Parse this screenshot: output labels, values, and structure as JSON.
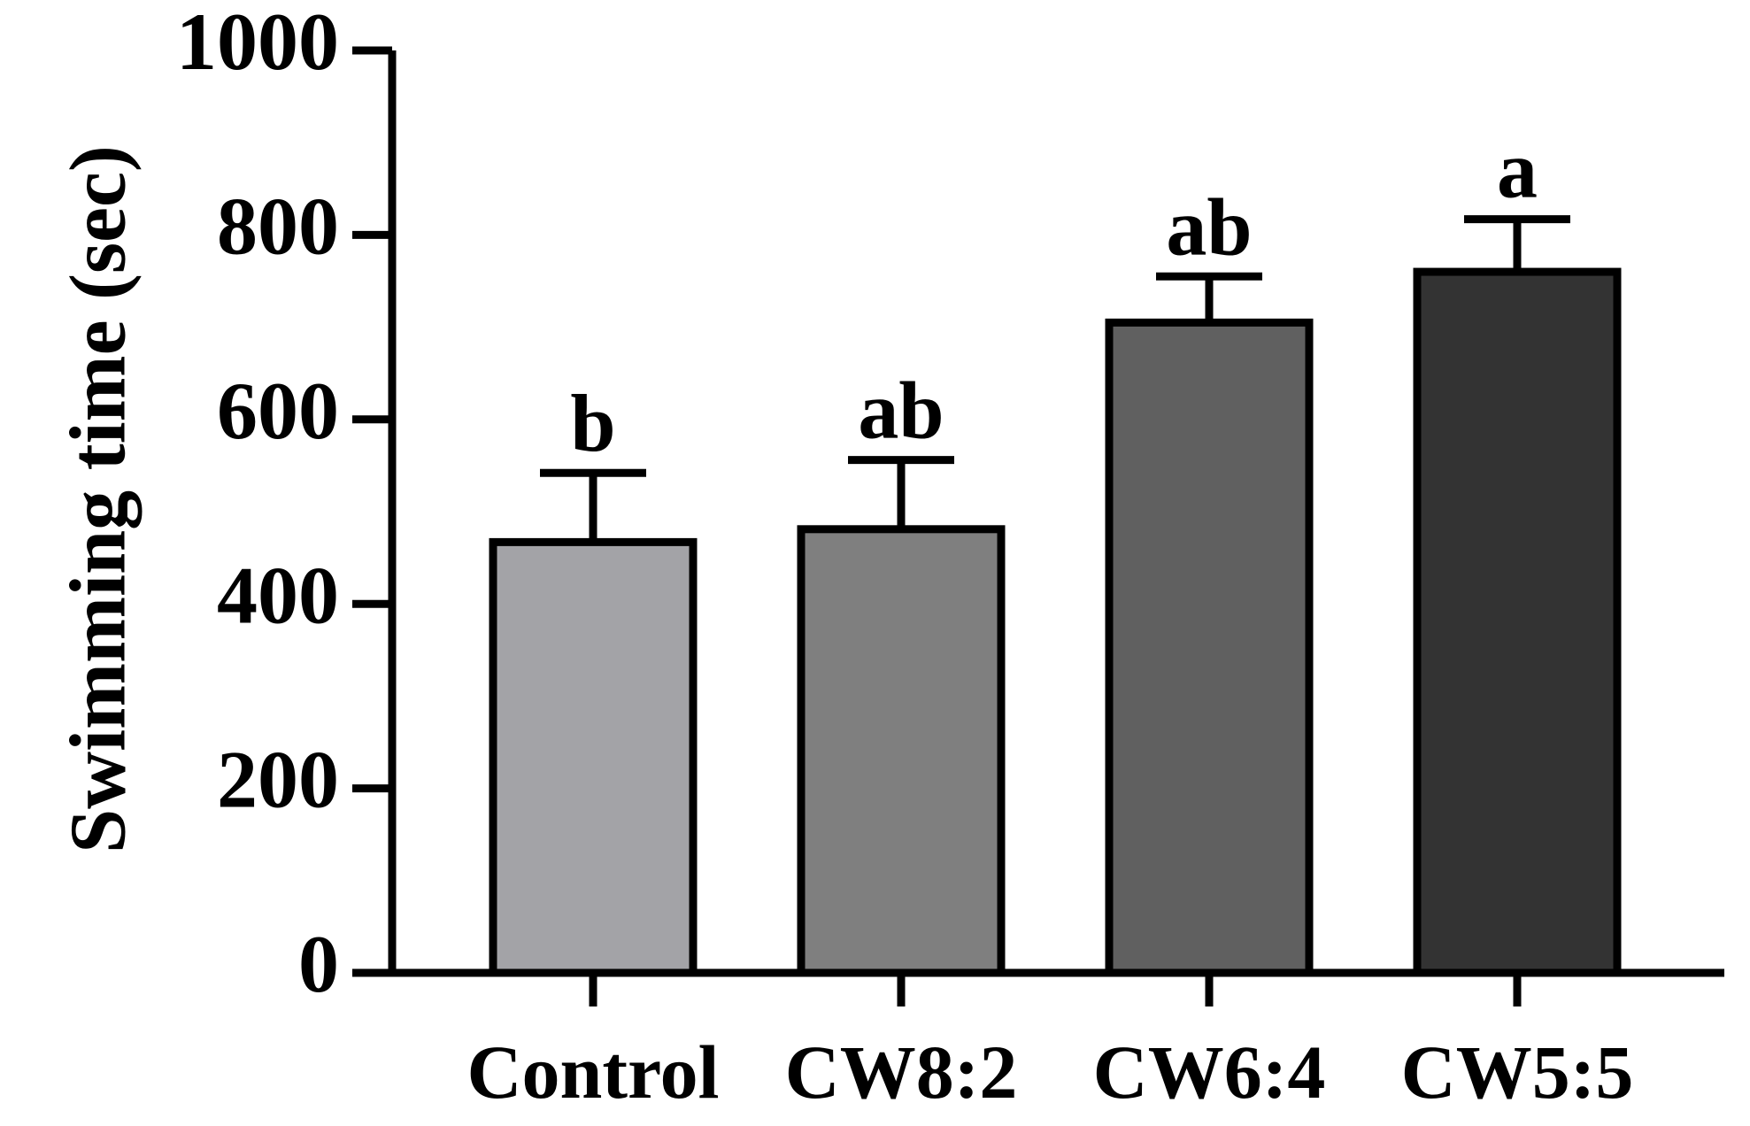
{
  "chart_data": {
    "type": "bar",
    "title": "",
    "xlabel": "",
    "ylabel": "Swimming time (sec)",
    "ylim": [
      0,
      1000
    ],
    "yticks": [
      0,
      200,
      400,
      600,
      800,
      1000
    ],
    "grid": false,
    "categories": [
      "Control",
      "CW8:2",
      "CW6:4",
      "CW5:5"
    ],
    "values": [
      467,
      481,
      705,
      760
    ],
    "errors": [
      75,
      75,
      50,
      57
    ],
    "significance_labels": [
      "b",
      "ab",
      "ab",
      "a"
    ],
    "colors": [
      "#a3a3a7",
      "#7f7f7f",
      "#606060",
      "#333333"
    ]
  }
}
